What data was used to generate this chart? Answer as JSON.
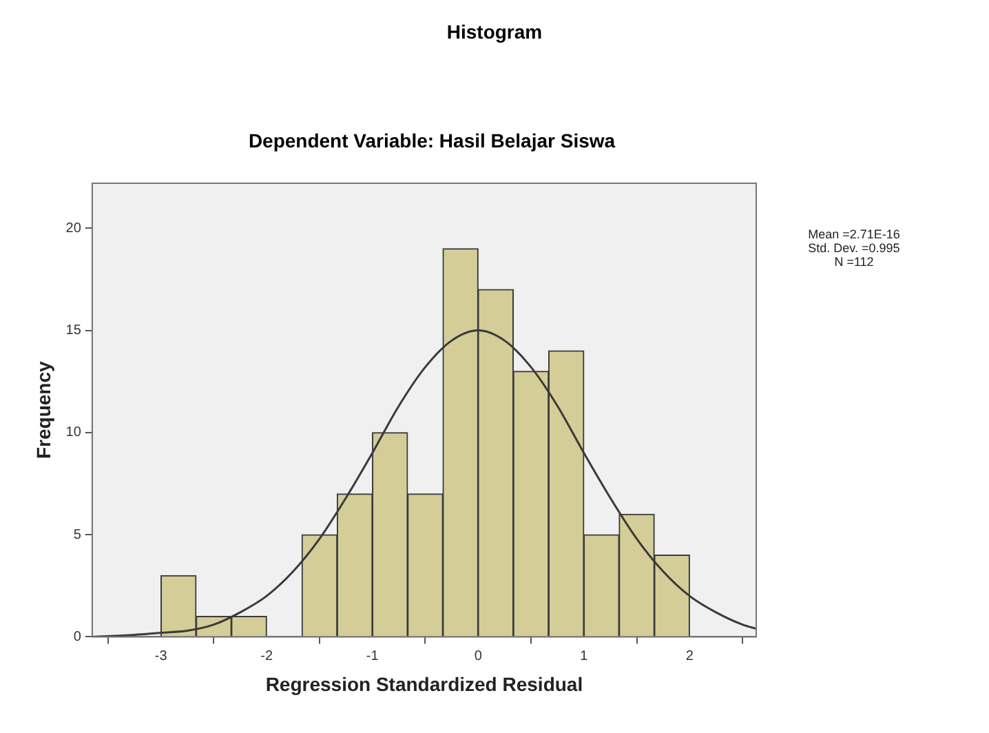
{
  "chart_data": {
    "type": "histogram",
    "title": "Histogram",
    "subtitle": "Dependent Variable: Hasil Belajar Siswa",
    "xlabel": "Regression Standardized Residual",
    "ylabel": "Frequency",
    "bins": [
      -3,
      -2.667,
      -2.333,
      -2,
      -1.667,
      -1.333,
      -1,
      -0.667,
      -0.333,
      0,
      0.333,
      0.667,
      1,
      1.333,
      1.667,
      2
    ],
    "series": [
      {
        "color": "#d4cd98",
        "values": [
          3,
          1,
          1,
          0,
          5,
          7,
          10,
          7,
          19,
          17,
          13,
          14,
          5,
          6,
          4
        ]
      },
      {
        "type": "line",
        "color": "#3a3a3a",
        "x": [
          -3.65,
          -3.25,
          -3,
          -2.75,
          -2.5,
          -2.25,
          -2,
          -1.75,
          -1.5,
          -1.25,
          -1,
          -0.75,
          -0.5,
          -0.25,
          0,
          0.25,
          0.5,
          0.75,
          1,
          1.25,
          1.5,
          1.75,
          2,
          2.25,
          2.5,
          2.63
        ],
        "values": [
          0,
          0.1,
          0.2,
          0.3,
          0.6,
          1.2,
          2,
          3.2,
          4.8,
          6.8,
          9,
          11.3,
          13.2,
          14.5,
          15,
          14.5,
          13.2,
          11.3,
          9,
          6.8,
          4.8,
          3.2,
          2,
          1.2,
          0.6,
          0.4
        ]
      }
    ],
    "xlim": [
      -3.65,
      2.63
    ],
    "xticks": [
      -3,
      -2,
      -1,
      0,
      1,
      2
    ],
    "ylim": [
      0,
      22.2
    ],
    "yticks": [
      0,
      5,
      10,
      15,
      20
    ],
    "annotations": [
      "Mean =2.71E-16",
      "Std. Dev. =0.995",
      "N =112"
    ]
  }
}
